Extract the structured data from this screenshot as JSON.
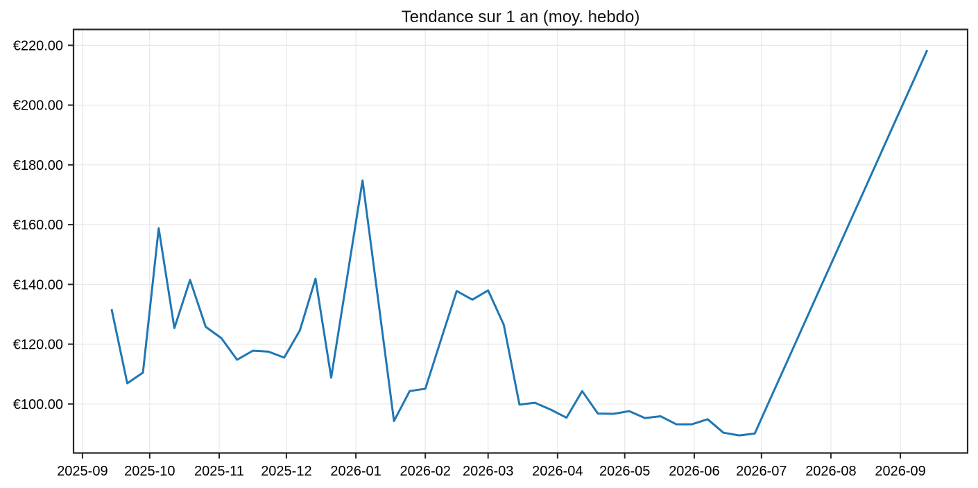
{
  "chart_data": {
    "type": "line",
    "title": "Tendance sur 1 an (moy. hebdo)",
    "background": "#ffffff",
    "grid": true,
    "grid_color": "#e7e7e7",
    "axis_color": "#262626",
    "text_color": "#000000",
    "legend": "none",
    "xlim": [
      "2025-08-28",
      "2026-10-01"
    ],
    "ylim": [
      83.6,
      225.3
    ],
    "x_ticks": [
      {
        "date": "2025-09-01",
        "label": "2025-09"
      },
      {
        "date": "2025-10-01",
        "label": "2025-10"
      },
      {
        "date": "2025-11-01",
        "label": "2025-11"
      },
      {
        "date": "2025-12-01",
        "label": "2025-12"
      },
      {
        "date": "2026-01-01",
        "label": "2026-01"
      },
      {
        "date": "2026-02-01",
        "label": "2026-02"
      },
      {
        "date": "2026-03-01",
        "label": "2026-03"
      },
      {
        "date": "2026-04-01",
        "label": "2026-04"
      },
      {
        "date": "2026-05-01",
        "label": "2026-05"
      },
      {
        "date": "2026-06-01",
        "label": "2026-06"
      },
      {
        "date": "2026-07-01",
        "label": "2026-07"
      },
      {
        "date": "2026-08-01",
        "label": "2026-08"
      },
      {
        "date": "2026-09-01",
        "label": "2026-09"
      }
    ],
    "y_ticks": [
      {
        "value": 100,
        "label": "€100.00"
      },
      {
        "value": 120,
        "label": "€120.00"
      },
      {
        "value": 140,
        "label": "€140.00"
      },
      {
        "value": 160,
        "label": "€160.00"
      },
      {
        "value": 180,
        "label": "€180.00"
      },
      {
        "value": 200,
        "label": "€200.00"
      },
      {
        "value": 220,
        "label": "€220.00"
      }
    ],
    "series": [
      {
        "color": "#1f77b4",
        "line_width": 3,
        "x": [
          "2025-09-14",
          "2025-09-21",
          "2025-09-28",
          "2025-10-05",
          "2025-10-12",
          "2025-10-19",
          "2025-10-26",
          "2025-11-02",
          "2025-11-09",
          "2025-11-16",
          "2025-11-23",
          "2025-11-30",
          "2025-12-07",
          "2025-12-14",
          "2025-12-21",
          "2025-12-28",
          "2026-01-04",
          "2026-01-11",
          "2026-01-18",
          "2026-01-25",
          "2026-02-01",
          "2026-02-08",
          "2026-02-15",
          "2026-02-22",
          "2026-03-01",
          "2026-03-08",
          "2026-03-15",
          "2026-03-22",
          "2026-03-29",
          "2026-04-05",
          "2026-04-12",
          "2026-04-19",
          "2026-04-26",
          "2026-05-03",
          "2026-05-10",
          "2026-05-17",
          "2026-05-24",
          "2026-05-31",
          "2026-06-07",
          "2026-06-14",
          "2026-06-21",
          "2026-06-28",
          "2026-07-05",
          "2026-07-12",
          "2026-07-19",
          "2026-07-26",
          "2026-08-02",
          "2026-08-09",
          "2026-08-16",
          "2026-08-23",
          "2026-08-30",
          "2026-09-06",
          "2026-09-13"
        ],
        "values": [
          131.7,
          106.9,
          110.5,
          158.8,
          125.4,
          141.5,
          125.8,
          122.0,
          114.8,
          117.8,
          117.5,
          115.5,
          124.6,
          141.9,
          108.8,
          141.8,
          174.8,
          134.5,
          94.3,
          104.3,
          105.1,
          121.5,
          137.8,
          134.9,
          138.0,
          126.5,
          99.8,
          100.4,
          98.1,
          95.4,
          104.3,
          96.8,
          96.7,
          97.6,
          95.3,
          95.9,
          93.2,
          93.2,
          94.9,
          90.4,
          89.5,
          90.1,
          101.8,
          113.4,
          125.1,
          136.8,
          148.4,
          160.1,
          171.7,
          183.4,
          195.1,
          206.7,
          218.4
        ]
      }
    ]
  }
}
